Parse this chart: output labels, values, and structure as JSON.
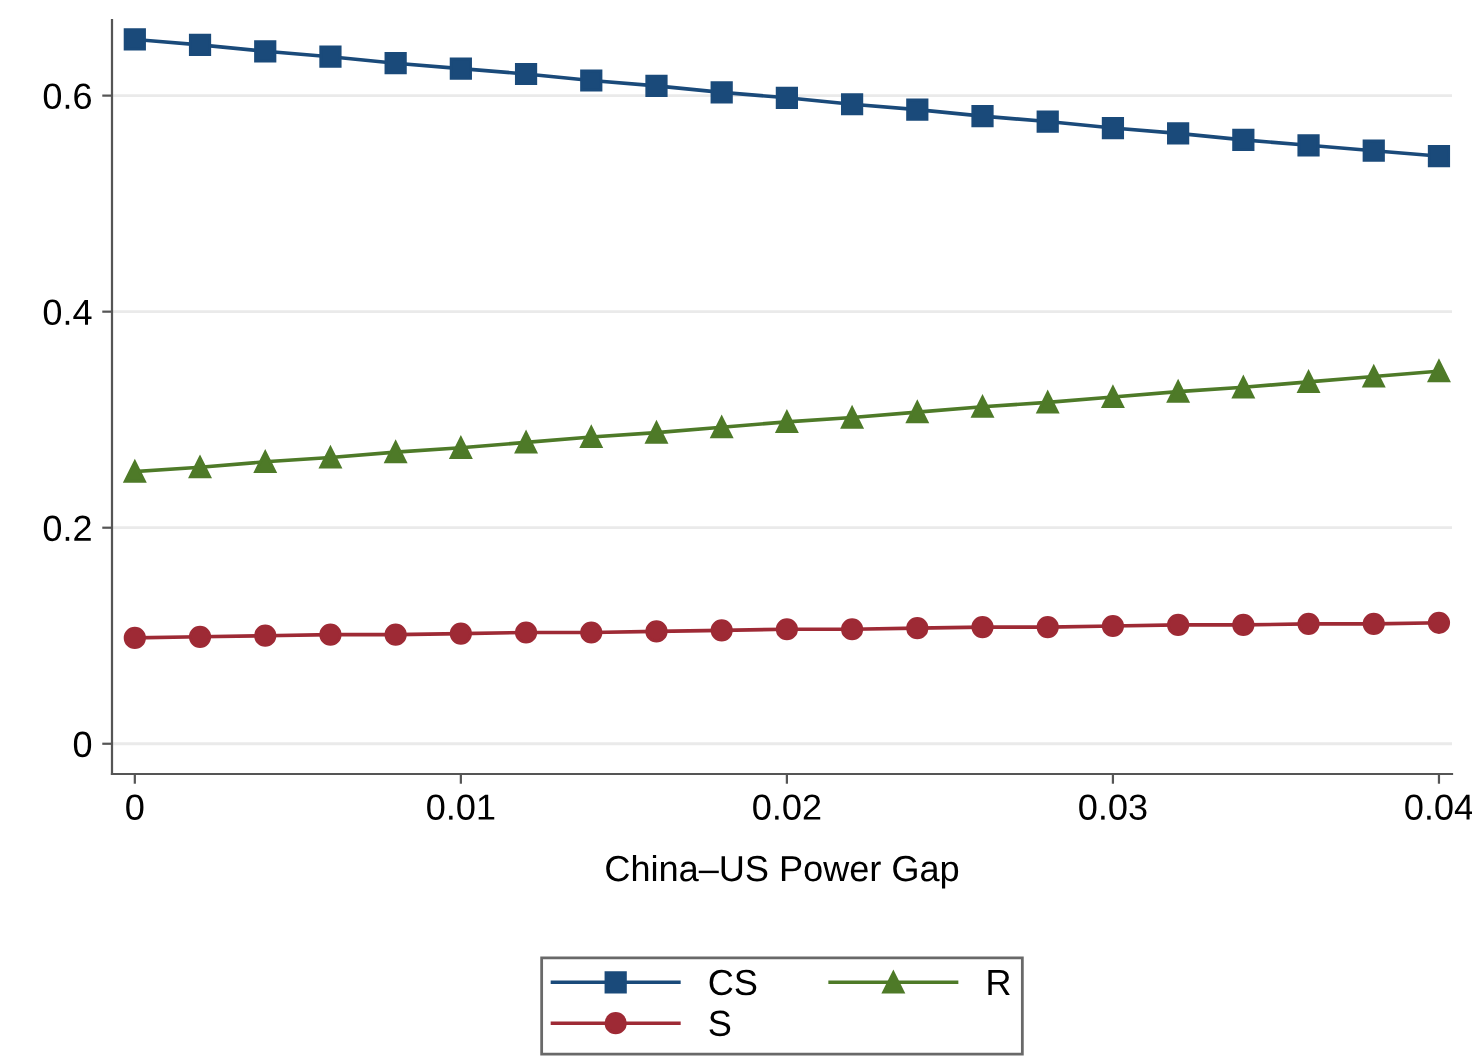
{
  "chart_data": {
    "type": "line",
    "xlabel": "China–US Power Gap",
    "x": [
      0,
      0.002,
      0.004,
      0.006,
      0.008,
      0.01,
      0.012,
      0.014,
      0.016,
      0.018,
      0.02,
      0.022,
      0.024,
      0.026,
      0.028,
      0.03,
      0.032,
      0.034,
      0.036,
      0.038,
      0.04
    ],
    "series": [
      {
        "name": "CS",
        "color": "#1a4a7a",
        "marker": "square",
        "values": [
          0.652,
          0.647,
          0.641,
          0.636,
          0.63,
          0.625,
          0.62,
          0.614,
          0.609,
          0.603,
          0.598,
          0.592,
          0.587,
          0.581,
          0.576,
          0.57,
          0.565,
          0.559,
          0.554,
          0.549,
          0.544
        ]
      },
      {
        "name": "S",
        "color": "#9e2a35",
        "marker": "circle",
        "values": [
          0.098,
          0.099,
          0.1,
          0.101,
          0.101,
          0.102,
          0.103,
          0.103,
          0.104,
          0.105,
          0.106,
          0.106,
          0.107,
          0.108,
          0.108,
          0.109,
          0.11,
          0.11,
          0.111,
          0.111,
          0.112
        ]
      },
      {
        "name": "R",
        "color": "#4e7a28",
        "marker": "triangle",
        "values": [
          0.252,
          0.256,
          0.261,
          0.265,
          0.27,
          0.274,
          0.279,
          0.284,
          0.288,
          0.293,
          0.298,
          0.302,
          0.307,
          0.312,
          0.316,
          0.321,
          0.326,
          0.33,
          0.335,
          0.34,
          0.345
        ]
      }
    ],
    "xlim": [
      -0.0007,
      0.0404
    ],
    "xticks": [
      0,
      0.01,
      0.02,
      0.03,
      0.04
    ],
    "ylim": [
      -0.028,
      0.67
    ],
    "yticks": [
      0,
      0.2,
      0.4,
      0.6
    ],
    "grid": "y",
    "legend": "bottom",
    "line_style": "solid"
  }
}
